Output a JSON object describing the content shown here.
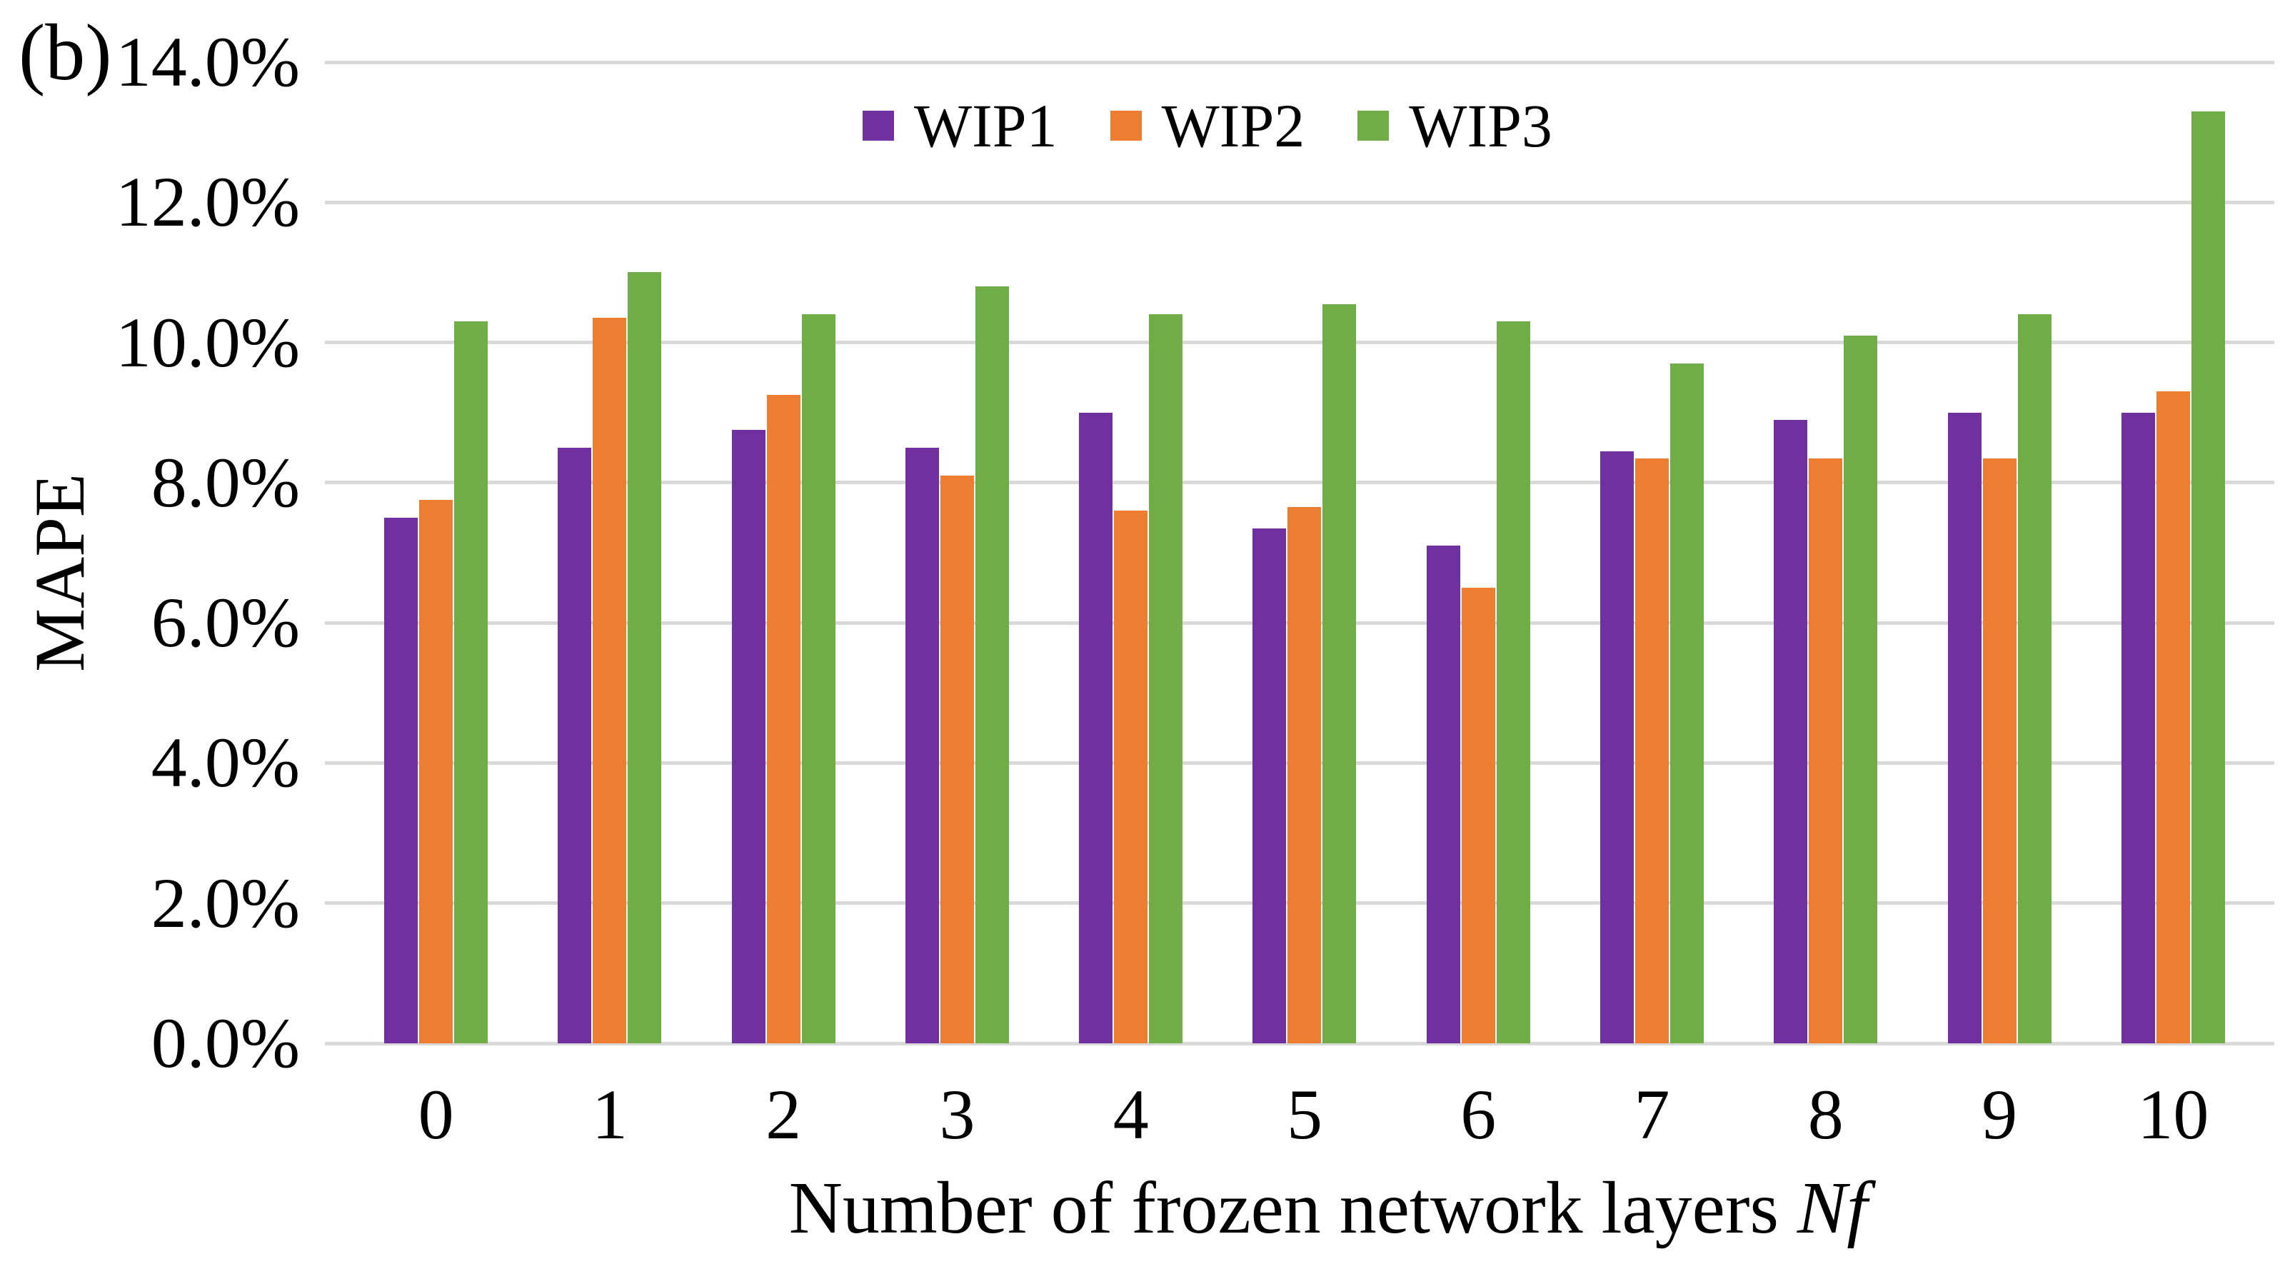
{
  "panel_label": "(b)",
  "chart_data": {
    "type": "bar",
    "title": "",
    "categories": [
      "0",
      "1",
      "2",
      "3",
      "4",
      "5",
      "6",
      "7",
      "8",
      "9",
      "10"
    ],
    "series": [
      {
        "name": "WIP1",
        "color": "#7030A0",
        "values": [
          7.5,
          8.5,
          8.75,
          8.5,
          9.0,
          7.35,
          7.1,
          8.45,
          8.9,
          9.0,
          9.0
        ]
      },
      {
        "name": "WIP2",
        "color": "#ED7D31",
        "values": [
          7.75,
          10.35,
          9.25,
          8.1,
          7.6,
          7.65,
          6.5,
          8.35,
          8.35,
          8.35,
          9.3
        ]
      },
      {
        "name": "WIP3",
        "color": "#70AD47",
        "values": [
          10.3,
          11.0,
          10.4,
          10.8,
          10.4,
          10.55,
          10.3,
          9.7,
          10.1,
          10.4,
          13.3
        ]
      }
    ],
    "xlabel": "Number of frozen network layers ",
    "xlabel_italic": "Nf",
    "ylabel": "MAPE",
    "ylim": [
      0,
      14
    ],
    "y_ticks": [
      "14.0%",
      "12.0%",
      "10.0%",
      "8.0%",
      "6.0%",
      "4.0%",
      "2.0%",
      "0.0%"
    ],
    "y_tick_values": [
      14,
      12,
      10,
      8,
      6,
      4,
      2,
      0
    ],
    "grid": true,
    "gridline_color": "#D9D9D9",
    "legend_position": "top-center",
    "bar_unit": "percent"
  }
}
